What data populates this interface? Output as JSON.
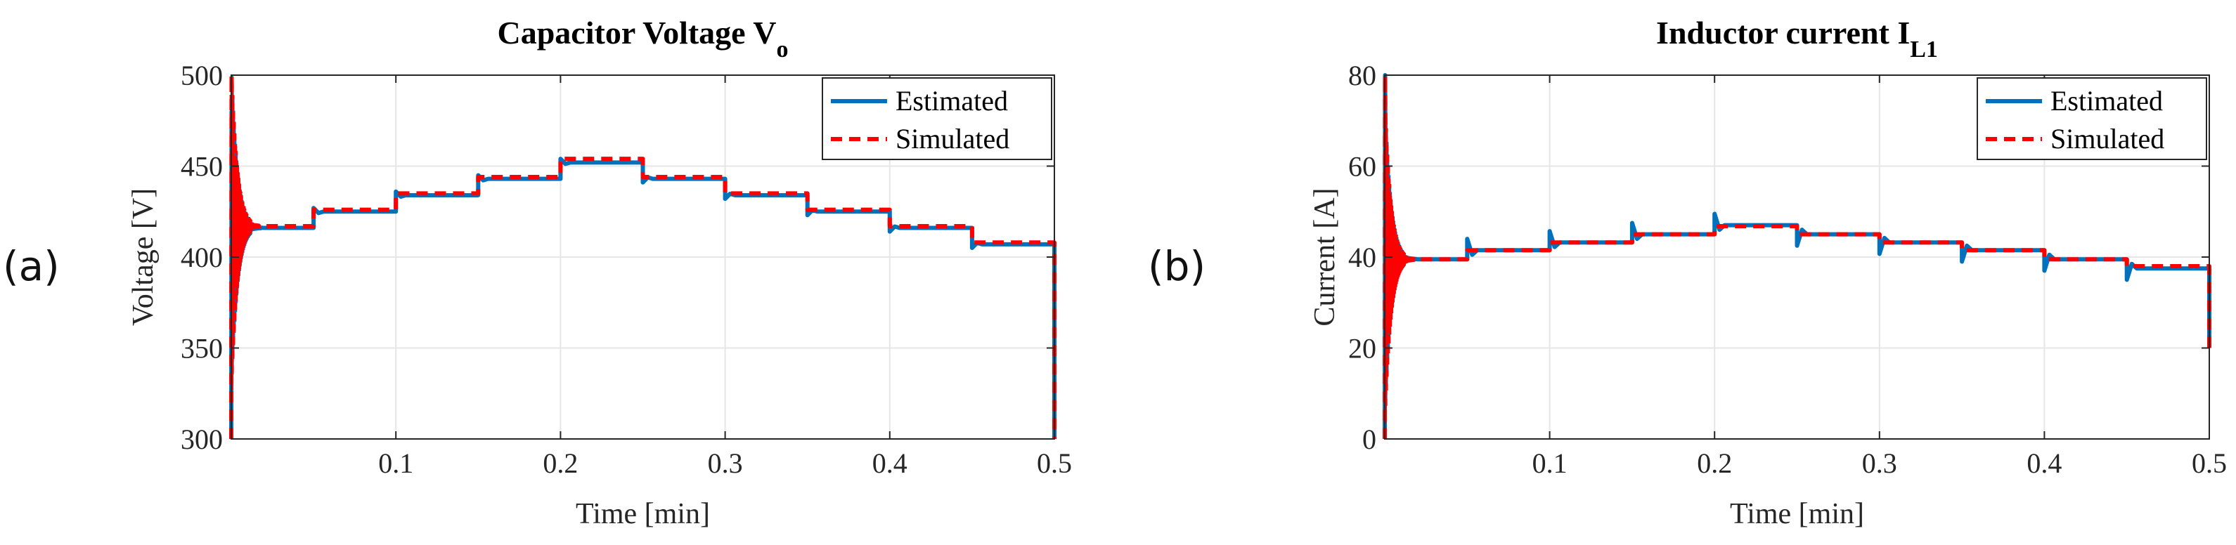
{
  "panels": [
    {
      "label": "(a)"
    },
    {
      "label": "(b)"
    }
  ],
  "colors": {
    "estimated": "#0072BD",
    "simulated": "#FF0000",
    "grid": "#e6e6e6",
    "axis": "#262626"
  },
  "chart_data": [
    {
      "type": "line",
      "title": "Capacitor Voltage V",
      "title_subscript": "o",
      "xlabel": "Time [min]",
      "ylabel": "Voltage [V]",
      "xlim": [
        0,
        0.5
      ],
      "ylim": [
        300,
        500
      ],
      "xticks": [
        0.1,
        0.2,
        0.3,
        0.4,
        0.5
      ],
      "xtick_labels": [
        "0.1",
        "0.2",
        "0.3",
        "0.4",
        "0.5"
      ],
      "yticks": [
        300,
        350,
        400,
        450,
        500
      ],
      "ytick_labels": [
        "300",
        "350",
        "400",
        "450",
        "500"
      ],
      "grid": true,
      "legend": "top-right",
      "step_times": [
        0,
        0.05,
        0.1,
        0.15,
        0.2,
        0.25,
        0.3,
        0.35,
        0.4,
        0.45,
        0.5
      ],
      "series": [
        {
          "name": "Estimated",
          "style": "solid",
          "levels": [
            416,
            425,
            434,
            443,
            452,
            443,
            434,
            425,
            416,
            407
          ],
          "start_value": 300,
          "end_value": 300,
          "transient_peak": 480,
          "step_overshoot": 2
        },
        {
          "name": "Simulated",
          "style": "dashed",
          "levels": [
            417,
            426,
            435,
            444,
            454,
            444,
            435,
            426,
            417,
            408
          ],
          "start_value": 300,
          "end_value": 300,
          "transient_peak": 500,
          "step_overshoot": 0
        }
      ]
    },
    {
      "type": "line",
      "title": "Inductor current I",
      "title_subscript": "L1",
      "xlabel": "Time [min]",
      "ylabel": "Current [A]",
      "xlim": [
        0,
        0.5
      ],
      "ylim": [
        0,
        80
      ],
      "xticks": [
        0.1,
        0.2,
        0.3,
        0.4,
        0.5
      ],
      "xtick_labels": [
        "0.1",
        "0.2",
        "0.3",
        "0.4",
        "0.5"
      ],
      "yticks": [
        0,
        20,
        40,
        60,
        80
      ],
      "ytick_labels": [
        "0",
        "20",
        "40",
        "60",
        "80"
      ],
      "grid": true,
      "legend": "top-right",
      "step_times": [
        0,
        0.05,
        0.1,
        0.15,
        0.2,
        0.25,
        0.3,
        0.35,
        0.4,
        0.45,
        0.5
      ],
      "series": [
        {
          "name": "Estimated",
          "style": "solid",
          "levels": [
            39.5,
            41.5,
            43.2,
            45.0,
            47.0,
            45.0,
            43.2,
            41.5,
            39.5,
            37.5
          ],
          "start_value": 0,
          "end_value": 20,
          "transient_peak": 80,
          "step_overshoot": 2.5
        },
        {
          "name": "Simulated",
          "style": "dashed",
          "levels": [
            39.5,
            41.5,
            43.2,
            45.0,
            46.8,
            45.0,
            43.2,
            41.5,
            39.5,
            38.0
          ],
          "start_value": 0,
          "end_value": 20,
          "transient_peak": 80,
          "step_overshoot": 0
        }
      ]
    }
  ]
}
